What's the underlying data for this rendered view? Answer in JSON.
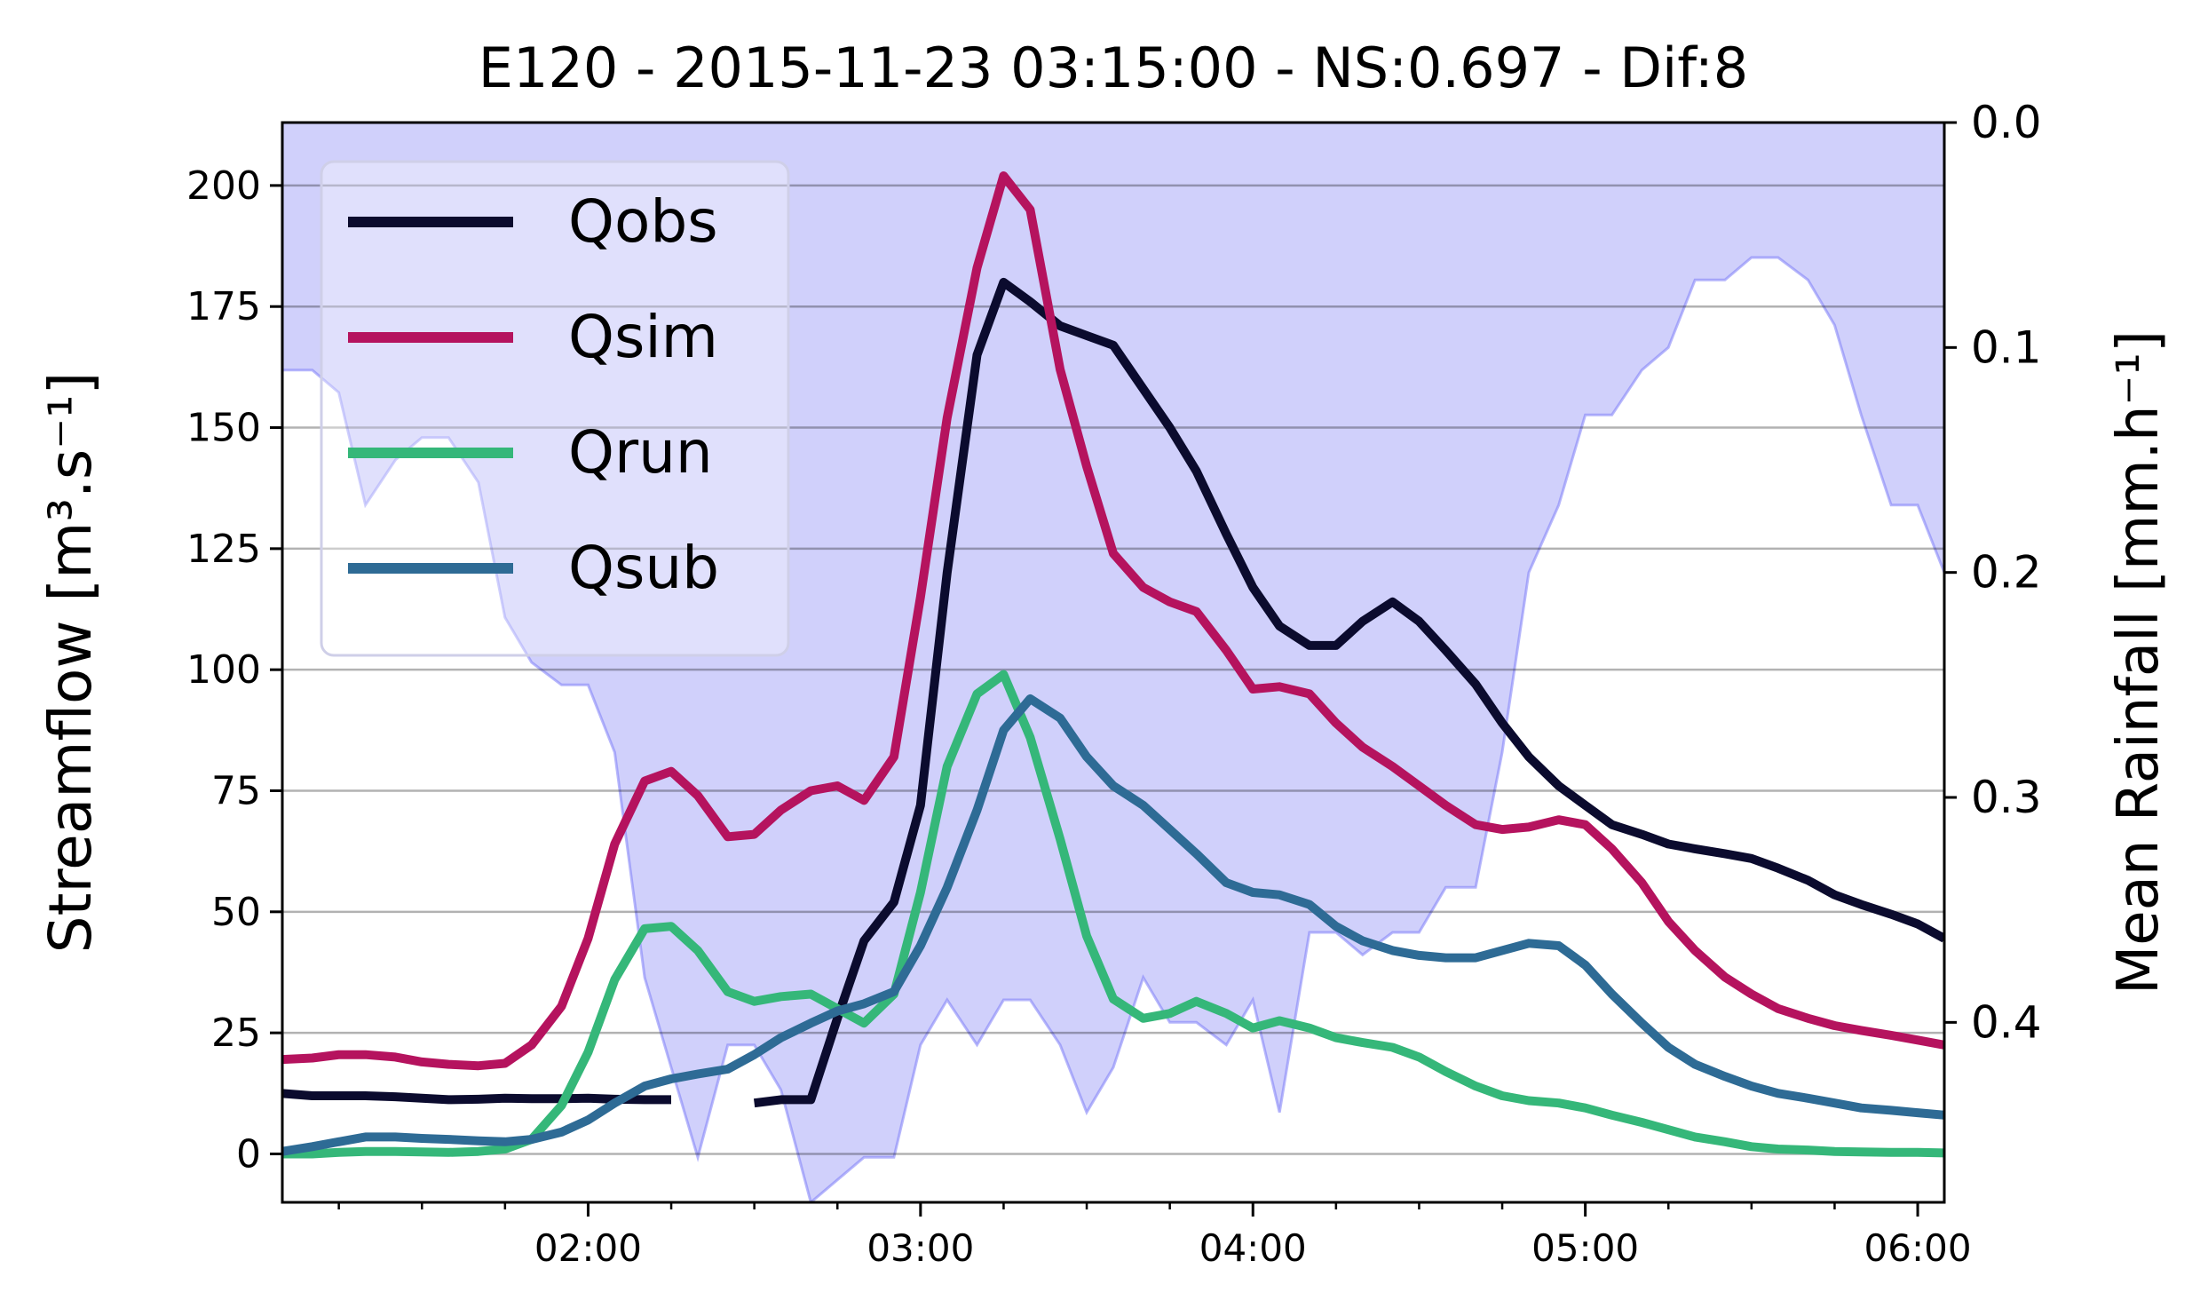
{
  "chart_data": {
    "type": "line",
    "title": "E120 - 2015-11-23 03:15:00 - NS:0.697 - Dif:8",
    "ylabel_left": "Streamflow [m³.s⁻¹]",
    "ylabel_right": "Mean Rainfall [mm.h⁻¹]",
    "x_tick_labels": [
      "02:00",
      "03:00",
      "04:00",
      "05:00",
      "06:00"
    ],
    "x_ticks_hours": [
      2,
      3,
      4,
      5,
      6
    ],
    "xlim_hours": [
      1.08,
      6.08
    ],
    "ylim_left": [
      -10,
      213
    ],
    "y_ticks_left": [
      0,
      25,
      50,
      75,
      100,
      125,
      150,
      175,
      200
    ],
    "ylim_right": [
      0.0,
      0.48
    ],
    "y_ticks_right": [
      "0.0",
      "0.1",
      "0.2",
      "0.3",
      "0.4"
    ],
    "y_ticks_right_values": [
      0.0,
      0.1,
      0.2,
      0.3,
      0.4
    ],
    "grid": "horizontal",
    "legend_position": "top-left",
    "rainfall": {
      "color": "#7b7bf7",
      "fill_color": "#d0d0fb",
      "x": [
        1.08,
        1.17,
        1.25,
        1.33,
        1.42,
        1.5,
        1.58,
        1.67,
        1.75,
        1.83,
        1.92,
        2.0,
        2.08,
        2.17,
        2.25,
        2.33,
        2.42,
        2.5,
        2.58,
        2.67,
        2.75,
        2.83,
        2.92,
        3.0,
        3.08,
        3.17,
        3.25,
        3.33,
        3.42,
        3.5,
        3.58,
        3.67,
        3.75,
        3.83,
        3.92,
        4.0,
        4.08,
        4.17,
        4.25,
        4.33,
        4.42,
        4.5,
        4.58,
        4.67,
        4.75,
        4.83,
        4.92,
        5.0,
        5.08,
        5.17,
        5.25,
        5.33,
        5.42,
        5.5,
        5.58,
        5.67,
        5.75,
        5.83,
        5.92,
        6.0,
        6.08
      ],
      "values": [
        0.11,
        0.11,
        0.12,
        0.17,
        0.15,
        0.14,
        0.14,
        0.16,
        0.22,
        0.24,
        0.25,
        0.25,
        0.28,
        0.38,
        0.42,
        0.46,
        0.41,
        0.41,
        0.43,
        0.48,
        0.47,
        0.46,
        0.46,
        0.41,
        0.39,
        0.41,
        0.39,
        0.39,
        0.41,
        0.44,
        0.42,
        0.38,
        0.4,
        0.4,
        0.41,
        0.39,
        0.44,
        0.36,
        0.36,
        0.37,
        0.36,
        0.36,
        0.34,
        0.34,
        0.28,
        0.2,
        0.17,
        0.13,
        0.13,
        0.11,
        0.1,
        0.07,
        0.07,
        0.06,
        0.06,
        0.07,
        0.09,
        0.13,
        0.17,
        0.17,
        0.2
      ]
    },
    "series": [
      {
        "name": "Qobs",
        "color": "#0b0b2e",
        "x": [
          1.08,
          1.17,
          1.25,
          1.33,
          1.42,
          1.5,
          1.58,
          1.67,
          1.75,
          1.83,
          1.92,
          2.0,
          2.08,
          2.17,
          2.25,
          null,
          2.5,
          2.58,
          2.67,
          2.75,
          2.83,
          2.92,
          3.0,
          3.08,
          3.17,
          3.25,
          3.33,
          3.42,
          3.5,
          3.58,
          3.67,
          3.75,
          3.83,
          3.92,
          4.0,
          4.08,
          4.17,
          4.25,
          4.33,
          4.42,
          4.5,
          4.58,
          4.67,
          4.75,
          4.83,
          4.92,
          5.0,
          5.08,
          5.17,
          5.25,
          5.33,
          5.42,
          5.5,
          5.58,
          5.67,
          5.75,
          5.83,
          5.92,
          6.0,
          6.08
        ],
        "values": [
          12.5,
          12,
          12,
          12,
          11.8,
          11.5,
          11.2,
          11.3,
          11.5,
          11.4,
          11.4,
          11.5,
          11.3,
          11.2,
          11.2,
          null,
          10.5,
          11.2,
          11.2,
          28,
          44,
          52,
          72,
          120,
          165,
          180,
          176,
          171,
          169,
          167,
          158,
          150,
          141,
          128,
          117,
          109,
          105,
          105,
          110,
          114,
          110,
          104,
          97,
          89,
          82,
          76,
          72,
          68,
          66,
          64,
          63,
          62,
          61,
          59,
          56.5,
          53.5,
          51.5,
          49.5,
          47.5,
          44.5
        ]
      },
      {
        "name": "Qsim",
        "color": "#b5135e",
        "x": [
          1.08,
          1.17,
          1.25,
          1.33,
          1.42,
          1.5,
          1.58,
          1.67,
          1.75,
          1.83,
          1.92,
          2.0,
          2.08,
          2.17,
          2.25,
          2.33,
          2.42,
          2.5,
          2.58,
          2.67,
          2.75,
          2.83,
          2.92,
          3.0,
          3.08,
          3.17,
          3.25,
          3.33,
          3.42,
          3.5,
          3.58,
          3.67,
          3.75,
          3.83,
          3.92,
          4.0,
          4.08,
          4.17,
          4.25,
          4.33,
          4.42,
          4.5,
          4.58,
          4.67,
          4.75,
          4.83,
          4.92,
          5.0,
          5.08,
          5.17,
          5.25,
          5.33,
          5.42,
          5.5,
          5.58,
          5.67,
          5.75,
          5.83,
          5.92,
          6.0,
          6.08
        ],
        "values": [
          19.5,
          19.8,
          20.5,
          20.5,
          20,
          19,
          18.5,
          18.2,
          18.7,
          22.5,
          30.5,
          44.5,
          64,
          77,
          79,
          74,
          65.5,
          66,
          71,
          75,
          76,
          73,
          82,
          115,
          152,
          183,
          202,
          195,
          162,
          142,
          124,
          117,
          114,
          112,
          104,
          96,
          96.5,
          95,
          89,
          84,
          80,
          76,
          72,
          68,
          67,
          67.5,
          69,
          68,
          63,
          56,
          48,
          42,
          36.5,
          33,
          30,
          28,
          26.5,
          25.5,
          24.5,
          23.5,
          22.5
        ]
      },
      {
        "name": "Qrun",
        "color": "#35b779",
        "x": [
          1.08,
          1.17,
          1.25,
          1.33,
          1.42,
          1.5,
          1.58,
          1.67,
          1.75,
          1.83,
          1.92,
          2.0,
          2.08,
          2.17,
          2.25,
          2.33,
          2.42,
          2.5,
          2.58,
          2.67,
          2.75,
          2.83,
          2.92,
          3.0,
          3.08,
          3.17,
          3.25,
          3.33,
          3.42,
          3.5,
          3.58,
          3.67,
          3.75,
          3.83,
          3.92,
          4.0,
          4.08,
          4.17,
          4.25,
          4.33,
          4.42,
          4.5,
          4.58,
          4.67,
          4.75,
          4.83,
          4.92,
          5.0,
          5.08,
          5.17,
          5.25,
          5.33,
          5.42,
          5.5,
          5.58,
          5.67,
          5.75,
          5.83,
          5.92,
          6.0,
          6.08
        ],
        "values": [
          0,
          0,
          0.3,
          0.5,
          0.5,
          0.4,
          0.3,
          0.5,
          1,
          3,
          10,
          21,
          36,
          46.5,
          47,
          42,
          33.5,
          31.5,
          32.5,
          33,
          30,
          27,
          33,
          54,
          80,
          95,
          99,
          86,
          65,
          45,
          32,
          28,
          29,
          31.5,
          29,
          26,
          27.5,
          26,
          24,
          23,
          22,
          20,
          17,
          14,
          12,
          11,
          10.5,
          9.5,
          8,
          6.5,
          5,
          3.5,
          2.5,
          1.5,
          1,
          0.8,
          0.5,
          0.4,
          0.3,
          0.3,
          0.2
        ]
      },
      {
        "name": "Qsub",
        "color": "#2e6b95",
        "x": [
          1.08,
          1.17,
          1.25,
          1.33,
          1.42,
          1.5,
          1.58,
          1.67,
          1.75,
          1.83,
          1.92,
          2.0,
          2.08,
          2.17,
          2.25,
          2.33,
          2.42,
          2.5,
          2.58,
          2.67,
          2.75,
          2.83,
          2.92,
          3.0,
          3.08,
          3.17,
          3.25,
          3.33,
          3.42,
          3.5,
          3.58,
          3.67,
          3.75,
          3.83,
          3.92,
          4.0,
          4.08,
          4.17,
          4.25,
          4.33,
          4.42,
          4.5,
          4.58,
          4.67,
          4.75,
          4.83,
          4.92,
          5.0,
          5.08,
          5.17,
          5.25,
          5.33,
          5.42,
          5.5,
          5.58,
          5.67,
          5.75,
          5.83,
          5.92,
          6.0,
          6.08
        ],
        "values": [
          0.5,
          1.5,
          2.5,
          3.5,
          3.5,
          3.2,
          3,
          2.7,
          2.5,
          3,
          4.5,
          7,
          10.5,
          14,
          15.5,
          16.5,
          17.5,
          20.5,
          24,
          27,
          29.5,
          31,
          33.5,
          43,
          55,
          71,
          87.5,
          94,
          90,
          82,
          76,
          72,
          67,
          62,
          56,
          54,
          53.5,
          51.5,
          47,
          44,
          42,
          41,
          40.5,
          40.5,
          42,
          43.5,
          43,
          39,
          33,
          27,
          22,
          18.5,
          16,
          14,
          12.5,
          11.5,
          10.5,
          9.5,
          9,
          8.5,
          8
        ]
      }
    ]
  }
}
